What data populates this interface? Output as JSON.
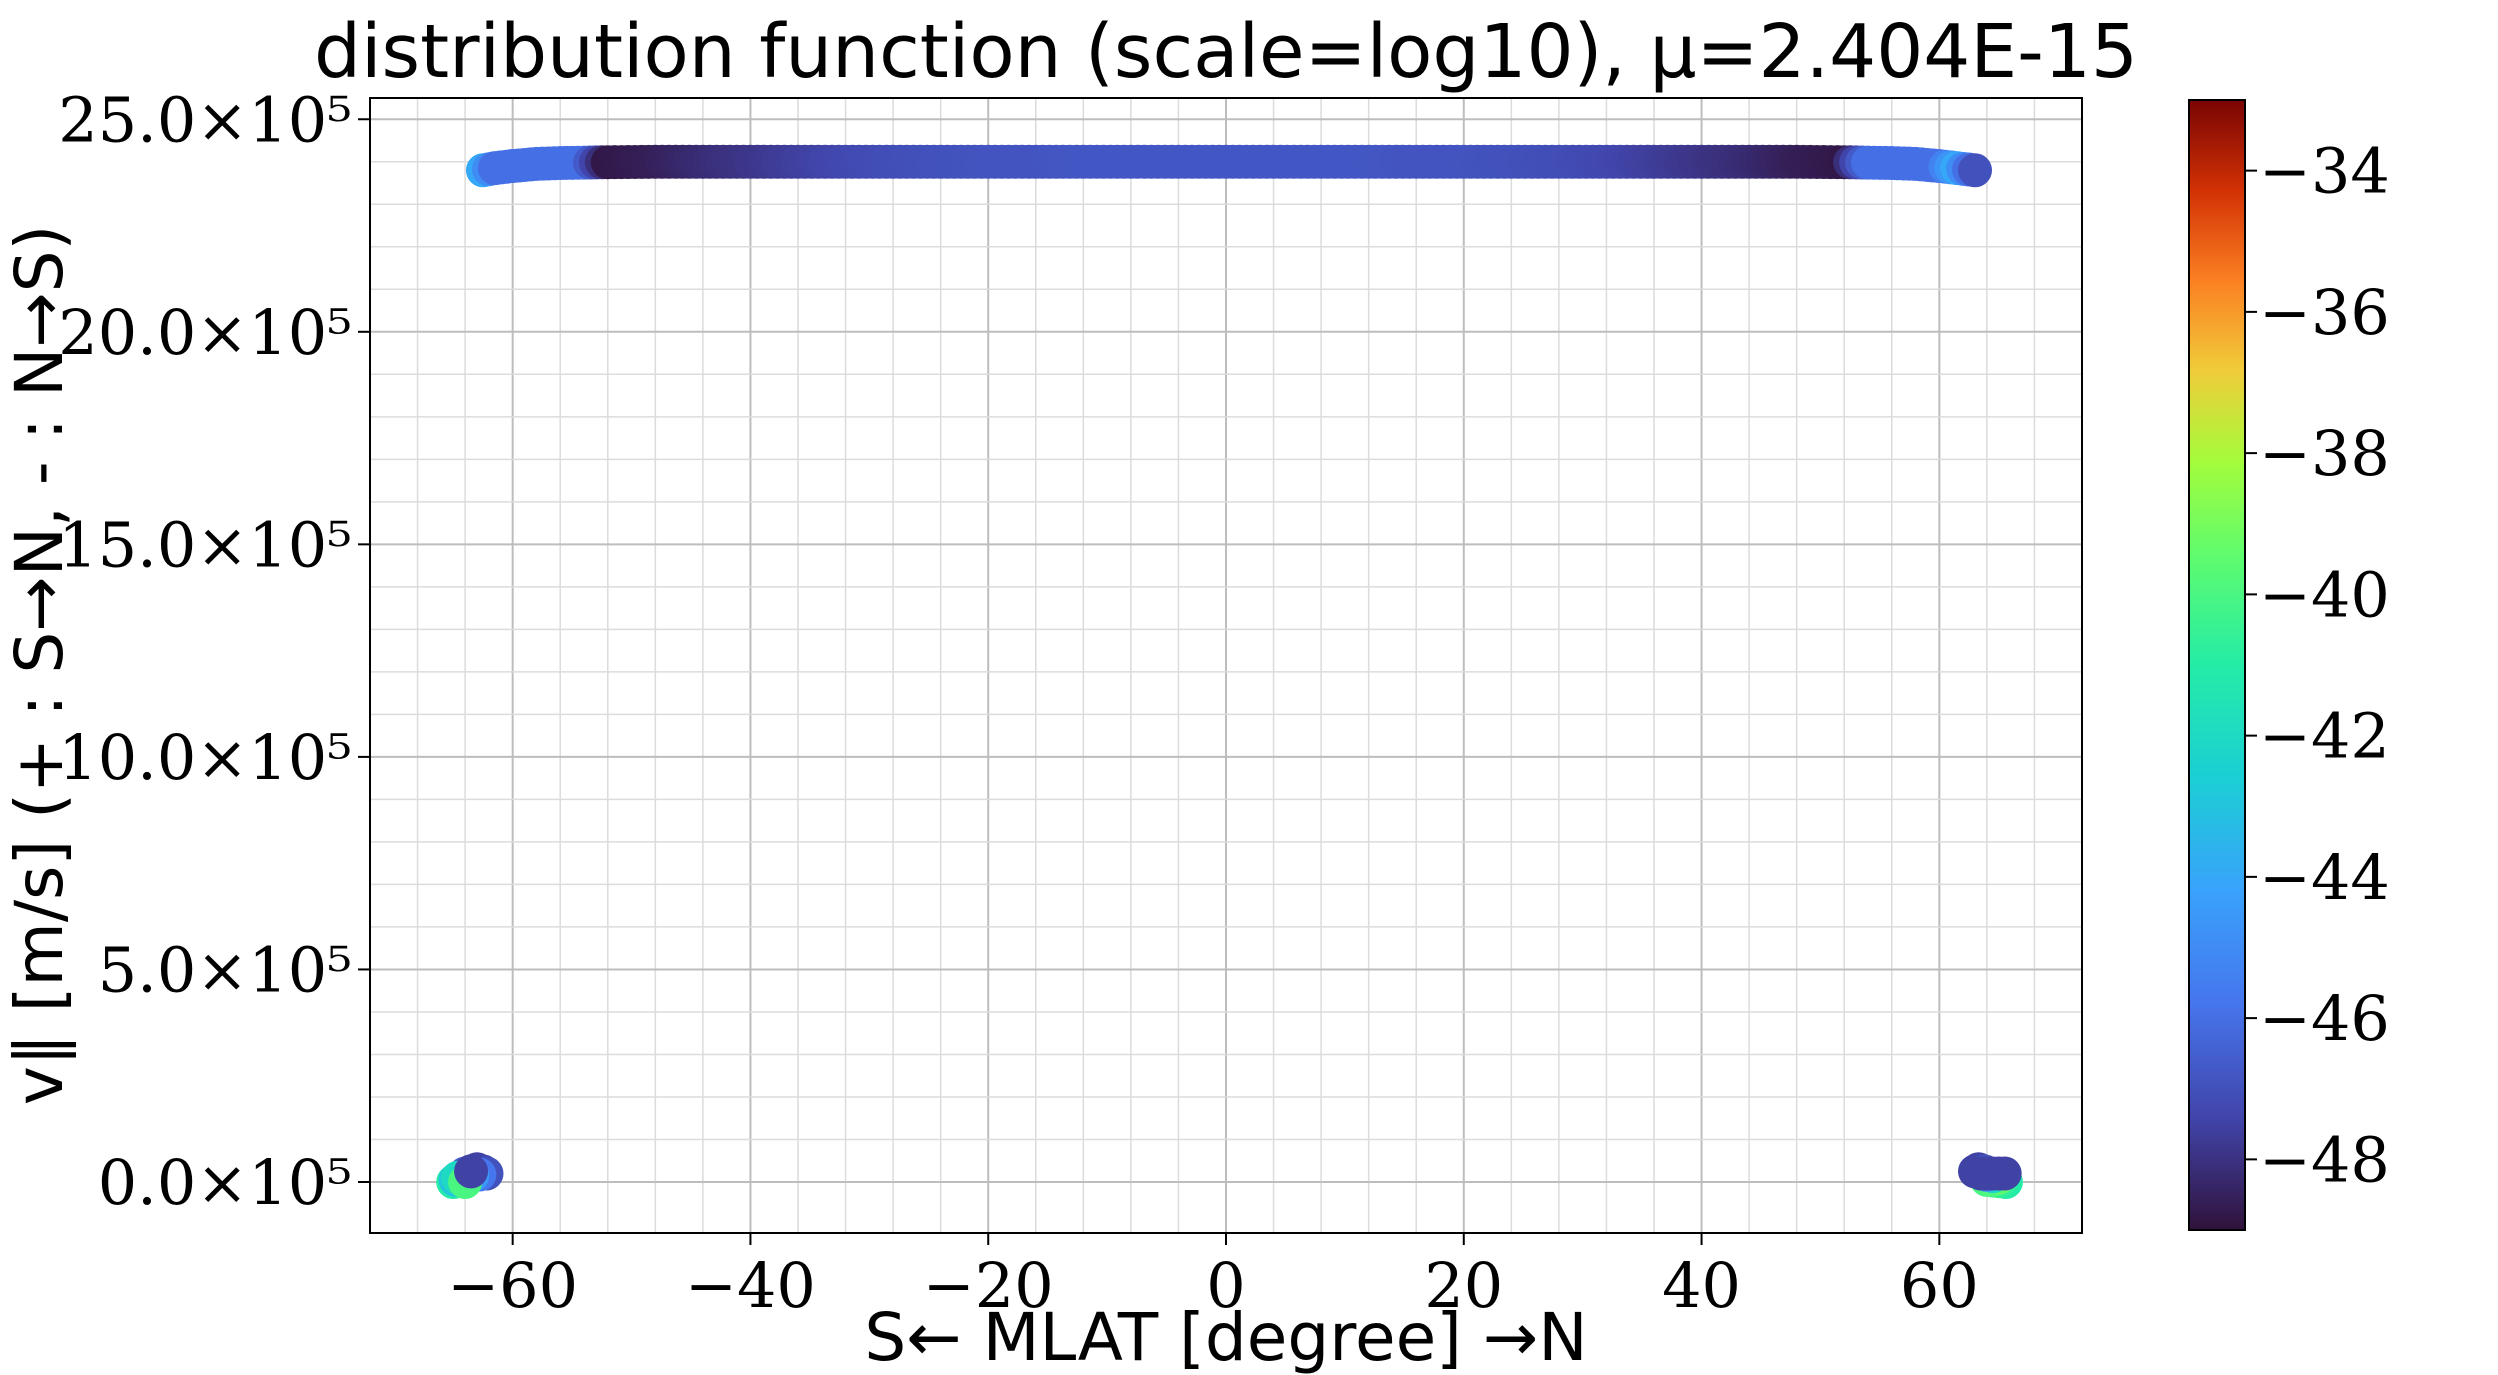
{
  "chart_data": {
    "type": "scatter",
    "title": "distribution function (scale=log10), μ=2.404E-15",
    "xlabel": "S← MLAT [degree] →N",
    "ylabel": "v∥ [m/s] (+ : S→N, - : N→S)",
    "xlim": [
      -72,
      72
    ],
    "ylim": [
      -1.2,
      25.5
    ],
    "y_unit_label": "×10⁵",
    "xticks": [
      -60,
      -40,
      -20,
      0,
      20,
      40,
      60
    ],
    "xtick_labels": [
      "−60",
      "−40",
      "−20",
      "0",
      "20",
      "40",
      "60"
    ],
    "yticks": [
      0,
      5,
      10,
      15,
      20,
      25
    ],
    "ytick_labels": [
      "0.0×10⁵",
      "5.0×10⁵",
      "10.0×10⁵",
      "15.0×10⁵",
      "20.0×10⁵",
      "25.0×10⁵"
    ],
    "grid": true,
    "colormap": "turbo",
    "colorbar": {
      "range": [
        -49,
        -33
      ],
      "ticks": [
        -48,
        -46,
        -44,
        -42,
        -40,
        -38,
        -36,
        -34
      ],
      "tick_labels": [
        "−48",
        "−46",
        "−44",
        "−42",
        "−40",
        "−38",
        "−36",
        "−34"
      ]
    },
    "series": [
      {
        "x": [
          -62.5,
          -61.5,
          -60.0,
          -58.0,
          -56.0,
          -54.0,
          -52.0,
          -48.0,
          -44.0,
          -40.0,
          -36.0,
          -32.0,
          -28.0,
          -24.0,
          -20.0,
          -16.0,
          -12.0,
          -8.0,
          -4.0,
          0.0,
          4.0,
          8.0,
          12.0,
          16.0,
          20.0,
          24.0,
          28.0,
          32.0,
          36.0,
          40.0,
          44.0,
          48.0,
          52.0,
          54.0,
          56.0,
          58.0,
          60.0,
          61.5,
          63.0
        ],
        "y": [
          23.8,
          23.85,
          23.9,
          23.95,
          23.97,
          23.98,
          23.99,
          24.0,
          24.0,
          24.0,
          24.0,
          24.0,
          24.0,
          24.0,
          24.0,
          24.0,
          24.0,
          24.0,
          24.0,
          24.0,
          24.0,
          24.0,
          24.0,
          24.0,
          24.0,
          24.0,
          24.0,
          24.0,
          24.0,
          24.0,
          24.0,
          24.0,
          23.99,
          23.98,
          23.97,
          23.95,
          23.9,
          23.85,
          23.8
        ],
        "c": [
          -44.0,
          -46.0,
          -46.0,
          -46.0,
          -46.0,
          -46.0,
          -48.8,
          -48.6,
          -48.2,
          -47.9,
          -47.6,
          -47.3,
          -47.1,
          -47.0,
          -46.9,
          -46.9,
          -46.8,
          -46.8,
          -46.8,
          -46.8,
          -46.8,
          -46.8,
          -46.8,
          -46.9,
          -46.9,
          -47.0,
          -47.1,
          -47.3,
          -47.6,
          -47.9,
          -48.2,
          -48.6,
          -48.8,
          -46.0,
          -46.0,
          -46.0,
          -46.0,
          -44.0,
          -47.0
        ]
      },
      {
        "x": [
          -65.0,
          -64.8,
          -64.5,
          -64.2,
          -64.0,
          -63.5,
          -63.0,
          -62.5,
          -62.2,
          -64.6,
          -64.0,
          -63.5
        ],
        "y": [
          0.0,
          0.05,
          0.1,
          0.15,
          0.2,
          0.25,
          0.3,
          0.25,
          0.2,
          0.1,
          0.0,
          0.25
        ],
        "c": [
          -41.0,
          -43.0,
          -44.0,
          -45.0,
          -46.5,
          -47.0,
          -47.5,
          -47.5,
          -47.0,
          -42.0,
          -40.0,
          -47.5
        ]
      },
      {
        "x": [
          63.0,
          63.3,
          63.8,
          64.2,
          64.6,
          65.0,
          65.3,
          65.6,
          64.0,
          65.0,
          63.5,
          65.5
        ],
        "y": [
          0.25,
          0.3,
          0.25,
          0.2,
          0.15,
          0.1,
          0.05,
          0.0,
          0.05,
          0.1,
          0.2,
          0.2
        ],
        "c": [
          -47.5,
          -47.5,
          -47.0,
          -46.5,
          -44.5,
          -43.0,
          -42.0,
          -41.0,
          -40.0,
          -39.5,
          -47.5,
          -47.5
        ]
      }
    ]
  }
}
